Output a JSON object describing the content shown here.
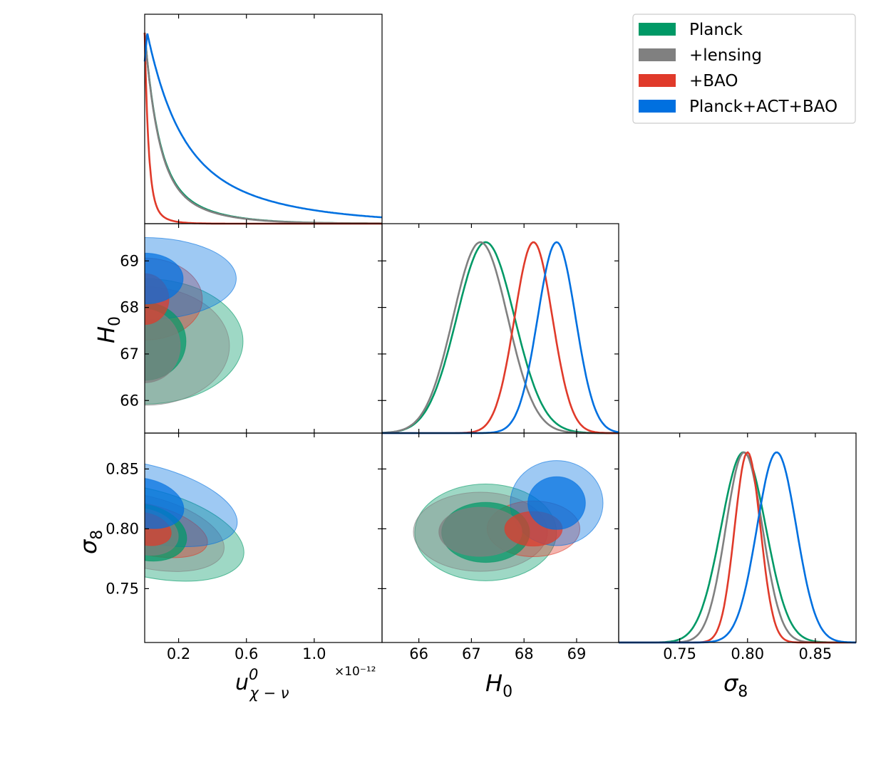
{
  "chart_data": {
    "type": "corner-triangle",
    "parameters": [
      "u_chi_nu",
      "H0",
      "sigma8"
    ],
    "axis_labels": {
      "u": {
        "main": "u",
        "sup": "0",
        "sub": "χ − ν"
      },
      "H0": {
        "main": "H",
        "sub": "0"
      },
      "sigma8": {
        "main": "σ",
        "sub": "8"
      }
    },
    "u_scale_label": "×10⁻¹²",
    "u_range": [
      0.0,
      1.4
    ],
    "u_ticks": [
      "0.2",
      "0.6",
      "1.0"
    ],
    "u_tick_values": [
      0.2,
      0.6,
      1.0
    ],
    "H0_range": [
      65.3,
      69.8
    ],
    "H0_ticks": [
      "66",
      "67",
      "68",
      "69"
    ],
    "H0_tick_values": [
      66,
      67,
      68,
      69
    ],
    "sigma8_range": [
      0.705,
      0.88
    ],
    "sigma8_ticks": [
      "0.75",
      "0.80",
      "0.85"
    ],
    "sigma8_tick_values": [
      0.75,
      0.8,
      0.85
    ],
    "series": [
      {
        "name": "Planck",
        "color": "#009966",
        "H0_mean": 67.27,
        "H0_sigma": 0.55,
        "sigma8_mean": 0.797,
        "sigma8_sigma": 0.0165,
        "u_decay": 0.075,
        "u_tail": 0.32
      },
      {
        "name": "+lensing",
        "color": "#808080",
        "H0_mean": 67.17,
        "H0_sigma": 0.52,
        "sigma8_mean": 0.7975,
        "sigma8_sigma": 0.0135,
        "u_decay": 0.075,
        "u_tail": 0.3
      },
      {
        "name": "+BAO",
        "color": "#e03a2a",
        "H0_mean": 68.18,
        "H0_sigma": 0.36,
        "sigma8_mean": 0.8,
        "sigma8_sigma": 0.0095,
        "u_decay": 0.022,
        "u_tail": 0.15
      },
      {
        "name": "Planck+ACT+BAO",
        "color": "#0070e0",
        "H0_mean": 68.62,
        "H0_sigma": 0.36,
        "sigma8_mean": 0.8215,
        "sigma8_sigma": 0.0145,
        "u_decay": 0.17,
        "u_tail": 0.42
      }
    ]
  }
}
